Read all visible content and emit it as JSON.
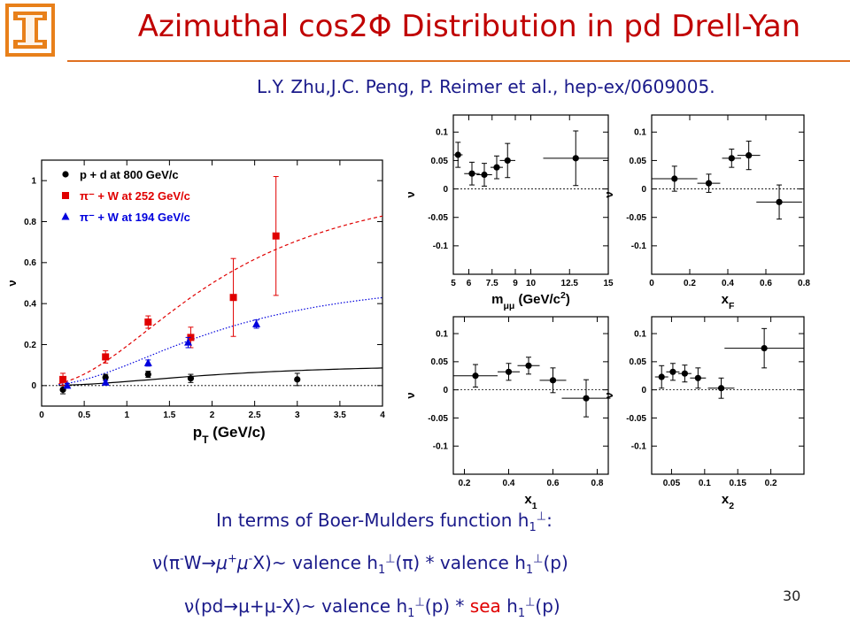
{
  "slide": {
    "title": "Azimuthal cos2Φ Distribution in pd Drell-Yan",
    "citation": "L.Y. Zhu,J.C. Peng, P. Reimer et al., hep-ex/0609005.",
    "page_number": "30",
    "colors": {
      "title": "#c00000",
      "text": "#1a1a8a",
      "rule": "#e07020",
      "logo": "#e8801a",
      "sea": "#e00000"
    },
    "logo_icon": "university-block-i-logo",
    "text_lines": {
      "l1a": "In terms of Boer-Mulders function h",
      "l1sub": "1",
      "l1sup": "⊥",
      "l1b": ":",
      "l2a": "ν(π",
      "l2sup1": "-",
      "l2b": "W",
      "l2arrow": "→",
      "l2mu1": "μ",
      "l2sup2": "+",
      "l2mu2": "μ",
      "l2sup3": "-",
      "l2c": "X)~ valence h",
      "l2sub1": "1",
      "l2perp1": "⊥",
      "l2d": "(π)  * valence h",
      "l2sub2": "1",
      "l2perp2": "⊥",
      "l2e": "(p)",
      "l3a": "ν(pd",
      "l3arrow": "→",
      "l3b": "μ+μ-X)~ valence h",
      "l3sub1": "1",
      "l3perp1": "⊥",
      "l3c": "(p) * ",
      "l3sea": "sea",
      "l3d": " h",
      "l3sub2": "1",
      "l3perp2": "⊥",
      "l3e": "(p)"
    }
  },
  "chart_data": [
    {
      "type": "scatter",
      "panel": "main",
      "xlabel": "p",
      "xlabel_sub": "T",
      "xlabel_rest": " (GeV/c)",
      "ylabel": "ν",
      "xlim": [
        0,
        4
      ],
      "ylim": [
        -0.1,
        1.1
      ],
      "xticks": [
        0,
        0.5,
        1,
        1.5,
        2,
        2.5,
        3,
        3.5,
        4
      ],
      "xticklabels": [
        "0",
        "0.5",
        "1",
        "1.5",
        "2",
        "2.5",
        "3",
        "3.5",
        "4"
      ],
      "yticks": [
        0,
        0.2,
        0.4,
        0.6,
        0.8,
        1
      ],
      "yticklabels": [
        "0",
        "0.2",
        "0.4",
        "0.6",
        "0.8",
        "1"
      ],
      "legend_position": "top-left",
      "series": [
        {
          "name": "p + d at 800 GeV/c",
          "marker": "circle",
          "color": "#000000",
          "x": [
            0.25,
            0.75,
            1.25,
            1.75,
            3.0
          ],
          "y": [
            -0.02,
            0.04,
            0.055,
            0.035,
            0.03
          ],
          "yerr": [
            0.02,
            0.015,
            0.015,
            0.02,
            0.03
          ]
        },
        {
          "name": "π⁻ + W at 252 GeV/c",
          "marker": "square",
          "color": "#e00000",
          "x": [
            0.25,
            0.75,
            1.25,
            1.75,
            2.25,
            2.75
          ],
          "y": [
            0.03,
            0.14,
            0.31,
            0.235,
            0.43,
            0.73
          ],
          "yerr": [
            0.03,
            0.03,
            0.03,
            0.05,
            0.19,
            0.29
          ]
        },
        {
          "name": "π⁻ + W at 194 GeV/c",
          "marker": "triangle",
          "color": "#0000dd",
          "x": [
            0.3,
            0.75,
            1.25,
            1.72,
            2.52
          ],
          "y": [
            0.0,
            0.015,
            0.11,
            0.21,
            0.3
          ],
          "yerr": [
            0.01,
            0.01,
            0.015,
            0.025,
            0.02
          ]
        }
      ],
      "fit_curves": [
        {
          "color": "#000000",
          "style": "solid",
          "asymptote": 0.11
        },
        {
          "color": "#e00000",
          "style": "dashed",
          "asymptote": 1.06
        },
        {
          "color": "#0000dd",
          "style": "dotted",
          "asymptote": 0.55
        }
      ]
    },
    {
      "type": "scatter",
      "panel": "mmumu",
      "xlabel": "m",
      "xlabel_sub": "μμ",
      "xlabel_rest": " (GeV/c",
      "xlabel_sup": "2",
      "xlabel_end": ")",
      "ylabel": "ν",
      "xlim": [
        5,
        15
      ],
      "ylim": [
        -0.15,
        0.13
      ],
      "xticks": [
        5,
        6,
        7.5,
        9,
        10,
        12.5,
        15
      ],
      "xticklabels": [
        "5",
        "6",
        "7.5",
        "9",
        "10",
        "12.5",
        "15"
      ],
      "yticks": [
        -0.1,
        -0.05,
        0,
        0.05,
        0.1
      ],
      "yticklabels": [
        "-0.1",
        "-0.05",
        "0",
        "0.05",
        "0.1"
      ],
      "x": [
        5.3,
        6.2,
        7.0,
        7.8,
        8.5,
        12.9
      ],
      "y": [
        0.06,
        0.027,
        0.025,
        0.038,
        0.05,
        0.054
      ],
      "xerr": [
        0.3,
        0.5,
        0.5,
        0.4,
        0.5,
        2.1
      ],
      "yerr": [
        0.022,
        0.02,
        0.02,
        0.02,
        0.03,
        0.048
      ]
    },
    {
      "type": "scatter",
      "panel": "xF",
      "xlabel": "x",
      "xlabel_sub": "F",
      "ylabel": "ν",
      "xlim": [
        0,
        0.8
      ],
      "ylim": [
        -0.15,
        0.13
      ],
      "xticks": [
        0,
        0.2,
        0.4,
        0.6,
        0.8
      ],
      "xticklabels": [
        "0",
        "0.2",
        "0.4",
        "0.6",
        "0.8"
      ],
      "yticks": [
        -0.1,
        -0.05,
        0,
        0.05,
        0.1
      ],
      "yticklabels": [
        "-0.1",
        "-0.05",
        "0",
        "0.05",
        "0.1"
      ],
      "x": [
        0.12,
        0.3,
        0.42,
        0.51,
        0.67
      ],
      "y": [
        0.018,
        0.01,
        0.054,
        0.059,
        -0.023
      ],
      "xerr": [
        0.12,
        0.06,
        0.05,
        0.06,
        0.12
      ],
      "yerr": [
        0.022,
        0.016,
        0.016,
        0.025,
        0.03
      ]
    },
    {
      "type": "scatter",
      "panel": "x1",
      "xlabel": "x",
      "xlabel_sub": "1",
      "ylabel": "ν",
      "xlim": [
        0.15,
        0.85
      ],
      "ylim": [
        -0.15,
        0.13
      ],
      "xticks": [
        0.2,
        0.4,
        0.6,
        0.8
      ],
      "xticklabels": [
        "0.2",
        "0.4",
        "0.6",
        "0.8"
      ],
      "yticks": [
        -0.1,
        -0.05,
        0,
        0.05,
        0.1
      ],
      "yticklabels": [
        "-0.1",
        "-0.05",
        "0",
        "0.05",
        "0.1"
      ],
      "x": [
        0.25,
        0.4,
        0.49,
        0.6,
        0.75
      ],
      "y": [
        0.025,
        0.032,
        0.043,
        0.017,
        -0.015
      ],
      "xerr": [
        0.1,
        0.05,
        0.05,
        0.06,
        0.11
      ],
      "yerr": [
        0.02,
        0.015,
        0.015,
        0.022,
        0.033
      ]
    },
    {
      "type": "scatter",
      "panel": "x2",
      "xlabel": "x",
      "xlabel_sub": "2",
      "ylabel": "ν",
      "xlim": [
        0.02,
        0.25
      ],
      "ylim": [
        -0.15,
        0.13
      ],
      "xticks": [
        0.05,
        0.1,
        0.15,
        0.2
      ],
      "xticklabels": [
        "0.05",
        "0.1",
        "0.15",
        "0.2"
      ],
      "yticks": [
        -0.1,
        -0.05,
        0,
        0.05,
        0.1
      ],
      "yticklabels": [
        "-0.1",
        "-0.05",
        "0",
        "0.05",
        "0.1"
      ],
      "x": [
        0.035,
        0.052,
        0.07,
        0.09,
        0.125,
        0.19
      ],
      "y": [
        0.023,
        0.032,
        0.029,
        0.021,
        0.003,
        0.074
      ],
      "xerr": [
        0.01,
        0.01,
        0.01,
        0.012,
        0.02,
        0.06
      ],
      "yerr": [
        0.02,
        0.015,
        0.015,
        0.018,
        0.018,
        0.035
      ]
    }
  ]
}
